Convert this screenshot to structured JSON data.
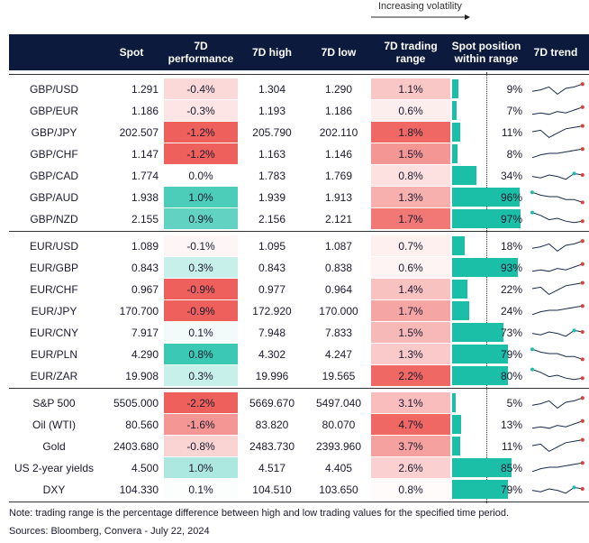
{
  "header": {
    "legend": "Increasing volatility"
  },
  "table": {
    "columns": [
      "Spot",
      "7D performance",
      "7D high",
      "7D low",
      "7D trading range",
      "Spot position within range",
      "7D trend"
    ],
    "groups": [
      [
        [
          "GBP/USD",
          "1.291",
          "-0.4%",
          "1.304",
          "1.290",
          "1.1%",
          "9%"
        ],
        [
          "GBP/EUR",
          "1.186",
          "-0.3%",
          "1.193",
          "1.186",
          "0.6%",
          "7%"
        ],
        [
          "GBP/JPY",
          "202.507",
          "-1.2%",
          "205.790",
          "202.110",
          "1.8%",
          "11%"
        ],
        [
          "GBP/CHF",
          "1.147",
          "-1.2%",
          "1.163",
          "1.146",
          "1.5%",
          "8%"
        ],
        [
          "GBP/CAD",
          "1.774",
          "0.0%",
          "1.783",
          "1.769",
          "0.8%",
          "34%"
        ],
        [
          "GBP/AUD",
          "1.938",
          "1.0%",
          "1.939",
          "1.913",
          "1.3%",
          "96%"
        ],
        [
          "GBP/NZD",
          "2.155",
          "0.9%",
          "2.156",
          "2.121",
          "1.7%",
          "97%"
        ]
      ],
      [
        [
          "EUR/USD",
          "1.089",
          "-0.1%",
          "1.095",
          "1.087",
          "0.7%",
          "18%"
        ],
        [
          "EUR/GBP",
          "0.843",
          "0.3%",
          "0.843",
          "0.838",
          "0.6%",
          "93%"
        ],
        [
          "EUR/CHF",
          "0.967",
          "-0.9%",
          "0.977",
          "0.964",
          "1.4%",
          "22%"
        ],
        [
          "EUR/JPY",
          "170.700",
          "-0.9%",
          "172.920",
          "170.000",
          "1.7%",
          "24%"
        ],
        [
          "EUR/CNY",
          "7.917",
          "0.1%",
          "7.948",
          "7.833",
          "1.5%",
          "73%"
        ],
        [
          "EUR/PLN",
          "4.290",
          "0.8%",
          "4.302",
          "4.247",
          "1.3%",
          "79%"
        ],
        [
          "EUR/ZAR",
          "19.908",
          "0.3%",
          "19.996",
          "19.565",
          "2.2%",
          "80%"
        ]
      ],
      [
        [
          "S&P 500",
          "5505.000",
          "-2.2%",
          "5669.670",
          "5497.040",
          "3.1%",
          "5%"
        ],
        [
          "Oil (WTI)",
          "80.560",
          "-1.6%",
          "83.820",
          "80.070",
          "4.7%",
          "13%"
        ],
        [
          "Gold",
          "2403.680",
          "-0.8%",
          "2483.730",
          "2393.960",
          "3.7%",
          "11%"
        ],
        [
          "US 2-year yields",
          "4.500",
          "1.0%",
          "4.517",
          "4.405",
          "2.6%",
          "85%"
        ],
        [
          "DXY",
          "104.330",
          "0.1%",
          "104.510",
          "103.650",
          "0.8%",
          "79%"
        ]
      ]
    ]
  },
  "note": "Note: trading range is the percentage difference between high and low trading values for the specified time period.",
  "sources": "Sources: Bloomberg, Convera - July 22, 2024"
}
